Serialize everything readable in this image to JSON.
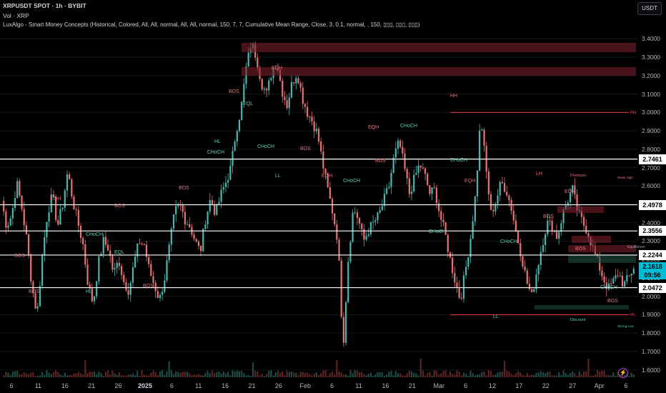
{
  "header": {
    "symbol_line": "XRPUSDT SPOT · 1h · BYBIT",
    "volume_line": "Vol · XRP",
    "indicator_line": "LuxAlgo - Smart Money Concepts (Historical, Colored, All, All, normal, All, All, normal, 150, 7, 7, Cumulative Mean Range, Close, 3, 0.1, normal, , 150, ▯▯▯, ▯▯▯, ▯▯▯)",
    "currency_button": "USDT"
  },
  "chart_data": {
    "type": "candlestick",
    "symbol": "XRPUSDT",
    "interval": "1h",
    "exchange": "BYBIT",
    "ylim": [
      1.56,
      3.44
    ],
    "y_ticks": [
      "3.4000",
      "3.3000",
      "3.2000",
      "3.1000",
      "3.0000",
      "2.9000",
      "2.8000",
      "2.7000",
      "2.6000",
      "2.5000",
      "2.4000",
      "2.3000",
      "2.2000",
      "2.1000",
      "2.0000",
      "1.9000",
      "1.8000",
      "1.7000",
      "1.6000"
    ],
    "x_ticks": [
      {
        "label": "6",
        "bold": false
      },
      {
        "label": "11",
        "bold": false
      },
      {
        "label": "16",
        "bold": false
      },
      {
        "label": "21",
        "bold": false
      },
      {
        "label": "26",
        "bold": false
      },
      {
        "label": "2025",
        "bold": true
      },
      {
        "label": "6",
        "bold": false
      },
      {
        "label": "11",
        "bold": false
      },
      {
        "label": "16",
        "bold": false
      },
      {
        "label": "21",
        "bold": false
      },
      {
        "label": "26",
        "bold": false
      },
      {
        "label": "Feb",
        "bold": false
      },
      {
        "label": "6",
        "bold": false
      },
      {
        "label": "11",
        "bold": false
      },
      {
        "label": "16",
        "bold": false
      },
      {
        "label": "21",
        "bold": false
      },
      {
        "label": "Mar",
        "bold": false
      },
      {
        "label": "6",
        "bold": false
      },
      {
        "label": "12",
        "bold": false
      },
      {
        "label": "17",
        "bold": false
      },
      {
        "label": "22",
        "bold": false
      },
      {
        "label": "27",
        "bold": false
      },
      {
        "label": "Apr",
        "bold": false
      },
      {
        "label": "6",
        "bold": false
      }
    ],
    "price_path": [
      2.52,
      2.38,
      2.44,
      2.62,
      2.48,
      2.3,
      2.05,
      1.9,
      2.22,
      2.45,
      2.55,
      2.38,
      2.5,
      2.68,
      2.52,
      2.4,
      2.28,
      2.06,
      1.96,
      2.18,
      2.3,
      2.26,
      2.12,
      2.2,
      2.08,
      2.03,
      2.18,
      2.3,
      2.28,
      2.14,
      2.06,
      1.98,
      2.1,
      2.28,
      2.46,
      2.5,
      2.42,
      2.38,
      2.3,
      2.24,
      2.42,
      2.53,
      2.45,
      2.55,
      2.62,
      2.7,
      2.9,
      3.02,
      3.24,
      3.38,
      3.3,
      3.16,
      3.1,
      3.22,
      3.28,
      3.12,
      3.04,
      3.16,
      3.22,
      3.08,
      3.0,
      2.95,
      2.88,
      2.72,
      2.58,
      2.45,
      2.3,
      1.72,
      2.2,
      2.48,
      2.42,
      2.3,
      2.36,
      2.4,
      2.44,
      2.52,
      2.6,
      2.76,
      2.84,
      2.7,
      2.56,
      2.64,
      2.72,
      2.66,
      2.56,
      2.58,
      2.44,
      2.34,
      2.2,
      2.08,
      1.98,
      2.14,
      2.32,
      2.56,
      2.98,
      2.7,
      2.45,
      2.52,
      2.62,
      2.58,
      2.48,
      2.34,
      2.22,
      2.08,
      2.0,
      2.14,
      2.28,
      2.4,
      2.38,
      2.32,
      2.44,
      2.52,
      2.58,
      2.46,
      2.4,
      2.35,
      2.26,
      2.18,
      2.1,
      2.04,
      2.08,
      2.13,
      2.06,
      2.1,
      2.16
    ],
    "current_price": "2.1618",
    "countdown": "09:56",
    "levels": [
      "2.7461",
      "2.4978",
      "2.3556",
      "2.2244",
      "2.0472"
    ],
    "structure_labels": [
      "BOS",
      "CHoCH",
      "EQL",
      "EQH",
      "LH",
      "HH",
      "HL",
      "LL",
      "PH",
      "PL"
    ],
    "zones": [
      "Premium",
      "Equilibrium",
      "Discount",
      "Weak High",
      "Strong Low"
    ],
    "price_markers": [
      {
        "label": "PH",
        "price": 3.0,
        "color": "#f23645"
      },
      {
        "label": "PL",
        "price": 1.9,
        "color": "#f23645"
      }
    ]
  }
}
